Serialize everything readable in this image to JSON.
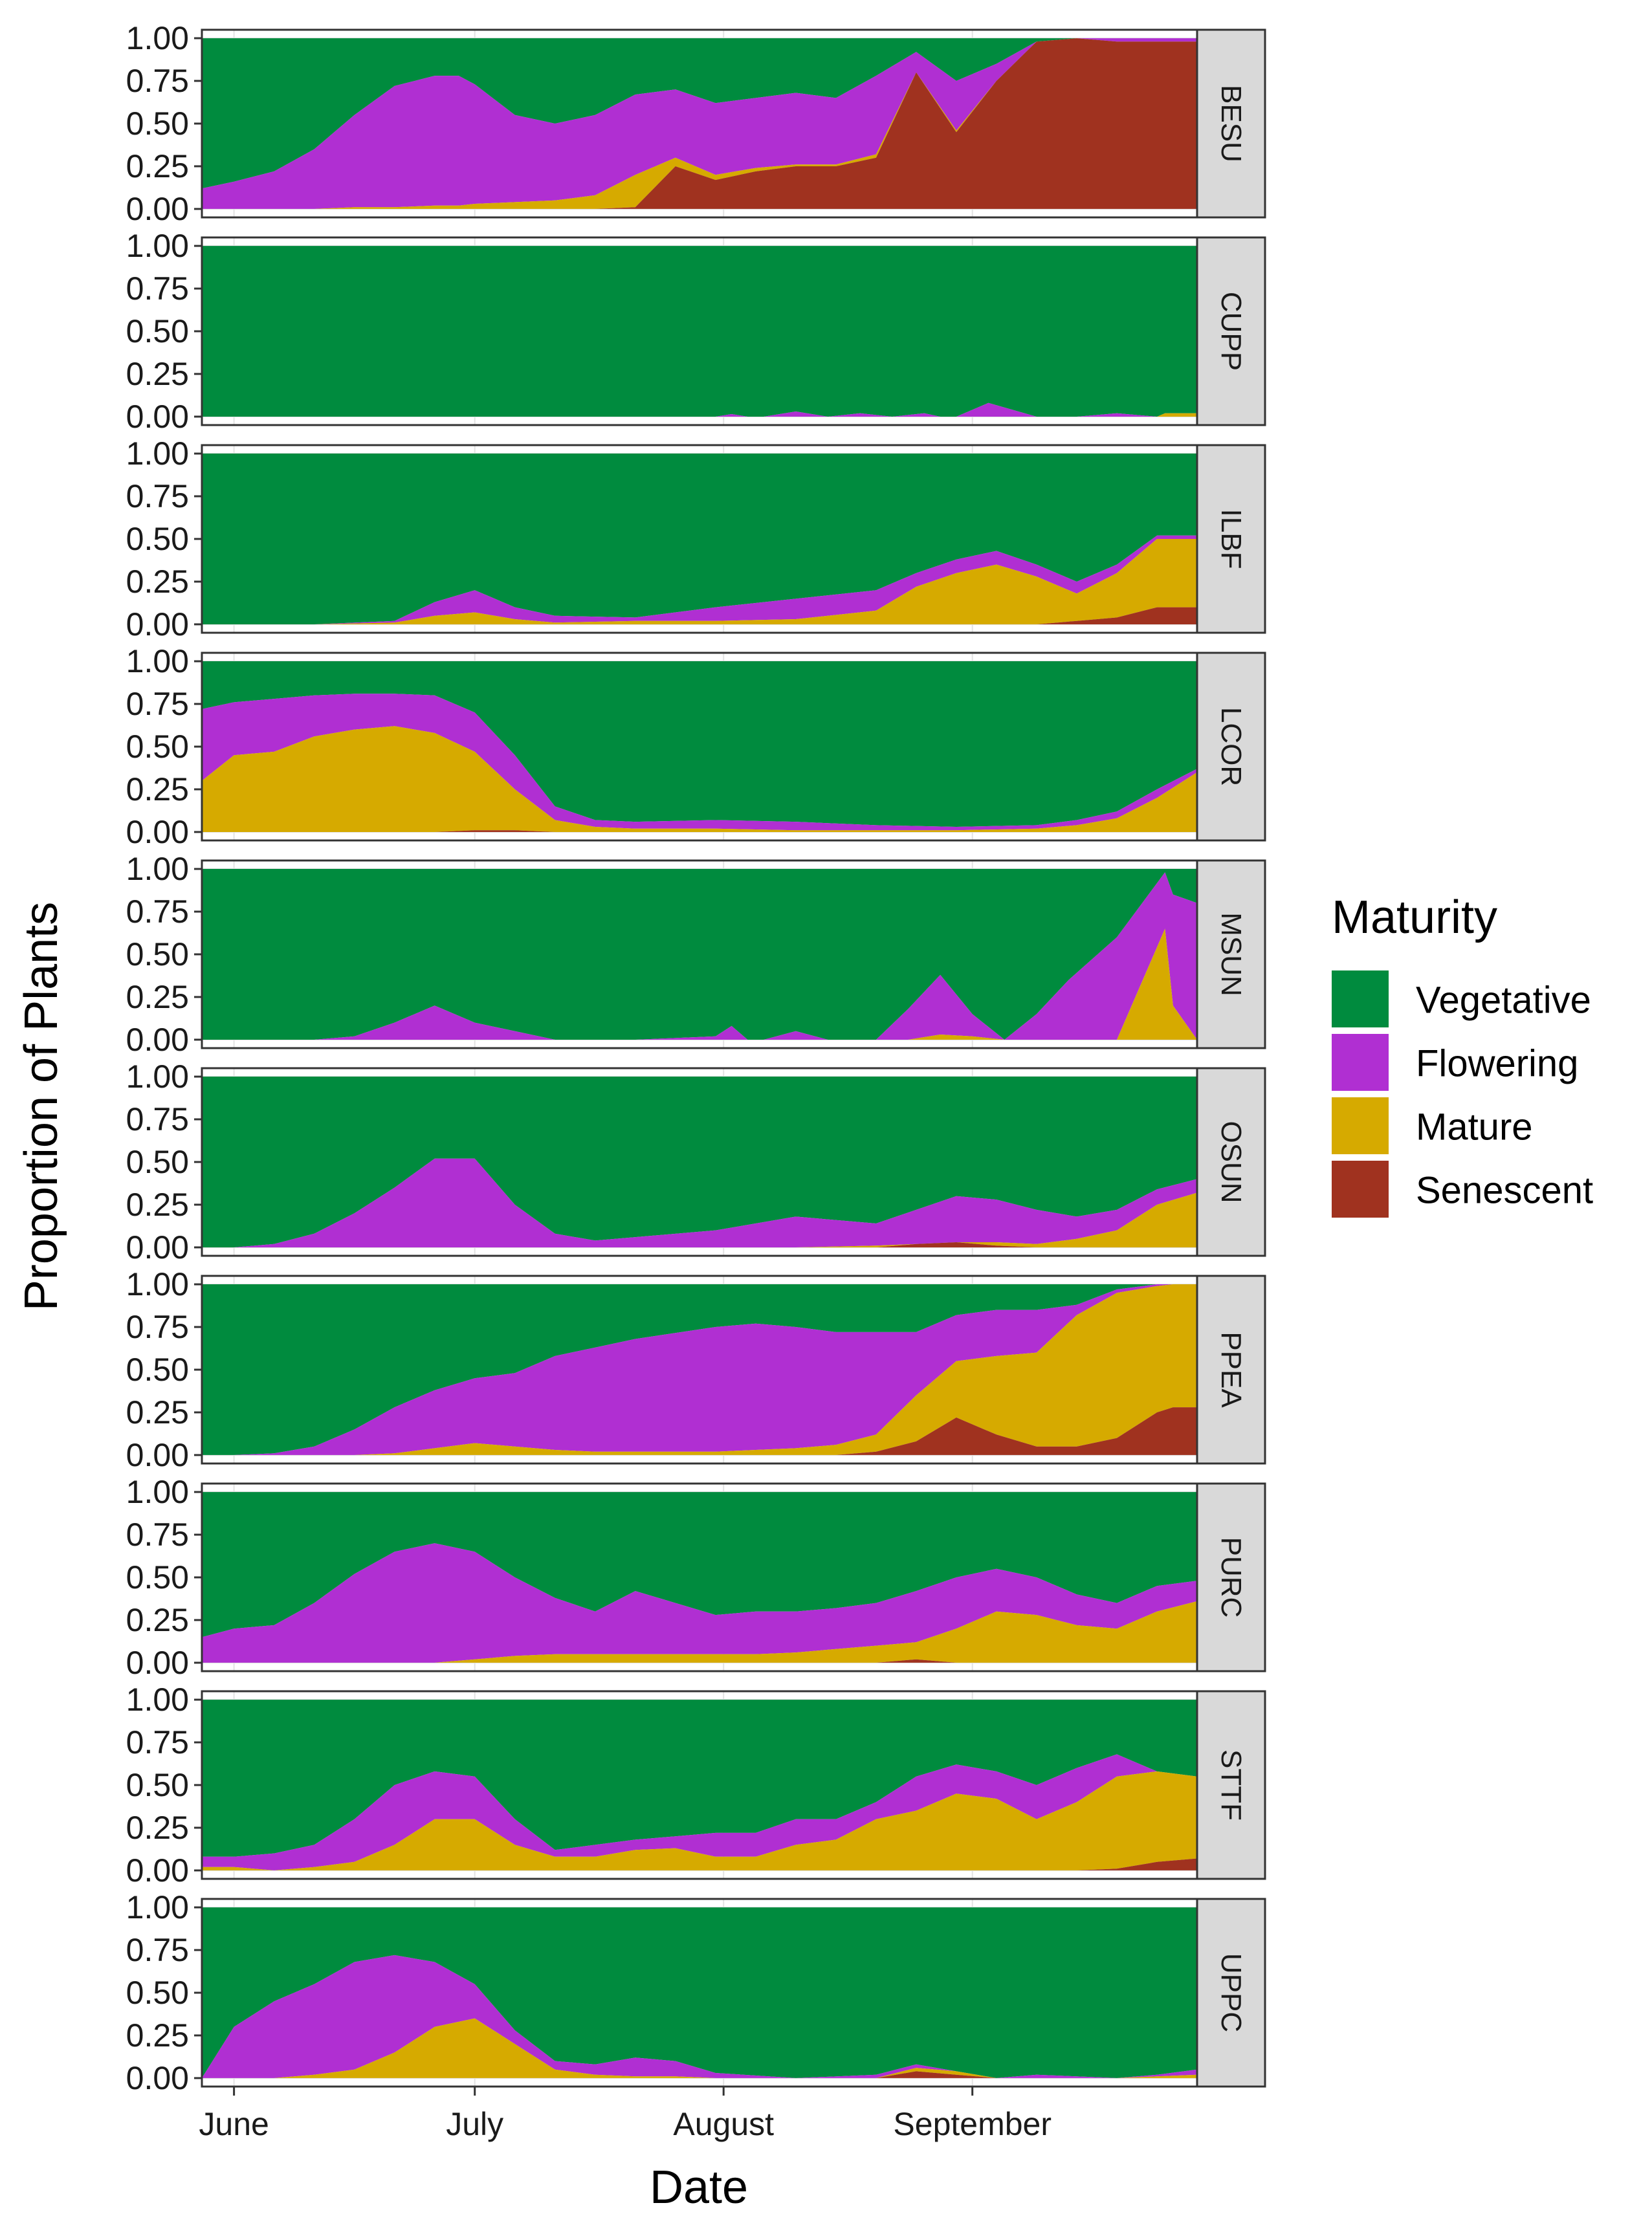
{
  "chart_data": {
    "type": "area",
    "subtype": "stacked-proportion, faceted by site",
    "xlabel": "Date",
    "ylabel": "Proportion of Plants",
    "x_unit": "days since 1 June",
    "xlim": [
      -4,
      120
    ],
    "x_ticks": [
      {
        "value": 0,
        "label": "June"
      },
      {
        "value": 30,
        "label": "July"
      },
      {
        "value": 61,
        "label": "August"
      },
      {
        "value": 92,
        "label": "September"
      }
    ],
    "ylim": [
      0,
      1
    ],
    "y_ticks": [
      {
        "value": 0,
        "label": "0.00"
      },
      {
        "value": 0.25,
        "label": "0.25"
      },
      {
        "value": 0.5,
        "label": "0.50"
      },
      {
        "value": 0.75,
        "label": "0.75"
      },
      {
        "value": 1,
        "label": "1.00"
      }
    ],
    "grid": true,
    "legend": {
      "title": "Maturity",
      "position": "right",
      "entries": [
        {
          "name": "Vegetative",
          "color": "#008B3E"
        },
        {
          "name": "Flowering",
          "color": "#B02FD2"
        },
        {
          "name": "Mature",
          "color": "#D6AA00"
        },
        {
          "name": "Senescent",
          "color": "#A0321F"
        }
      ]
    },
    "stack_order_bottom_to_top": [
      "Senescent",
      "Mature",
      "Flowering",
      "Vegetative"
    ],
    "series_note": "Cumulative stacked boundaries (top of Senescent, top of Mature, top of Flowering); Vegetative fills to 1.0",
    "panels": [
      {
        "name": "BESU",
        "x": [
          -4,
          0,
          5,
          10,
          15,
          20,
          25,
          28,
          30,
          35,
          40,
          45,
          50,
          55,
          60,
          65,
          70,
          75,
          80,
          85,
          90,
          95,
          100,
          105,
          110,
          115,
          116,
          117,
          120
        ],
        "senescent": [
          0,
          0,
          0,
          0,
          0,
          0,
          0,
          0,
          0,
          0,
          0,
          0,
          0.01,
          0.25,
          0.17,
          0.22,
          0.25,
          0.25,
          0.3,
          0.8,
          0.45,
          0.75,
          0.98,
          1.0,
          0.98,
          0.98,
          0.98,
          0.98,
          0.98
        ],
        "mature": [
          0,
          0,
          0,
          0,
          0.01,
          0.01,
          0.02,
          0.02,
          0.03,
          0.04,
          0.05,
          0.08,
          0.2,
          0.3,
          0.2,
          0.24,
          0.26,
          0.26,
          0.32,
          0.8,
          0.46,
          0.75,
          0.98,
          1.0,
          0.98,
          0.98,
          0.98,
          0.98,
          0.98
        ],
        "flowering": [
          0.12,
          0.16,
          0.22,
          0.35,
          0.55,
          0.72,
          0.78,
          0.78,
          0.73,
          0.55,
          0.5,
          0.55,
          0.67,
          0.7,
          0.62,
          0.65,
          0.68,
          0.65,
          0.78,
          0.92,
          0.75,
          0.85,
          0.98,
          1.0,
          1.0,
          1.0,
          1.0,
          1.0,
          1.0
        ]
      },
      {
        "name": "CUPP",
        "x": [
          -4,
          0,
          10,
          20,
          30,
          40,
          50,
          60,
          62,
          64,
          66,
          70,
          74,
          78,
          82,
          86,
          88,
          90,
          94,
          100,
          105,
          110,
          115,
          116,
          117,
          120
        ],
        "senescent": [
          0,
          0,
          0,
          0,
          0,
          0,
          0,
          0,
          0,
          0,
          0,
          0,
          0,
          0,
          0,
          0,
          0,
          0,
          0,
          0,
          0,
          0,
          0,
          0,
          0,
          0
        ],
        "mature": [
          0,
          0,
          0,
          0,
          0,
          0,
          0,
          0,
          0,
          0,
          0,
          0,
          0,
          0,
          0,
          0,
          0,
          0,
          0,
          0,
          0,
          0,
          0,
          0.02,
          0.02,
          0.02
        ],
        "flowering": [
          0,
          0,
          0,
          0,
          0,
          0,
          0,
          0,
          0.015,
          0,
          0,
          0.03,
          0,
          0.02,
          0,
          0.02,
          0,
          0,
          0.08,
          0,
          0,
          0.02,
          0,
          0.02,
          0.02,
          0.02
        ]
      },
      {
        "name": "ILBF",
        "x": [
          -4,
          0,
          10,
          20,
          25,
          30,
          35,
          40,
          50,
          60,
          70,
          80,
          85,
          90,
          95,
          100,
          105,
          110,
          115,
          120
        ],
        "senescent": [
          0,
          0,
          0,
          0,
          0,
          0,
          0,
          0,
          0,
          0,
          0,
          0,
          0,
          0,
          0,
          0,
          0.02,
          0.04,
          0.1,
          0.1
        ],
        "mature": [
          0,
          0,
          0,
          0.01,
          0.05,
          0.07,
          0.03,
          0.01,
          0.02,
          0.02,
          0.03,
          0.08,
          0.22,
          0.3,
          0.35,
          0.28,
          0.18,
          0.3,
          0.5,
          0.5
        ],
        "flowering": [
          0,
          0,
          0,
          0.02,
          0.13,
          0.2,
          0.1,
          0.05,
          0.04,
          0.1,
          0.15,
          0.2,
          0.3,
          0.38,
          0.43,
          0.35,
          0.25,
          0.35,
          0.52,
          0.52
        ]
      },
      {
        "name": "LCOR",
        "x": [
          -4,
          0,
          5,
          10,
          15,
          20,
          25,
          30,
          35,
          40,
          45,
          50,
          60,
          70,
          80,
          90,
          100,
          105,
          110,
          115,
          120
        ],
        "senescent": [
          0,
          0,
          0,
          0,
          0,
          0,
          0,
          0.01,
          0.01,
          0,
          0,
          0,
          0,
          0,
          0,
          0,
          0,
          0,
          0,
          0,
          0
        ],
        "mature": [
          0.3,
          0.45,
          0.47,
          0.56,
          0.6,
          0.62,
          0.58,
          0.47,
          0.25,
          0.07,
          0.03,
          0.02,
          0.02,
          0.01,
          0.01,
          0.01,
          0.02,
          0.04,
          0.08,
          0.2,
          0.35
        ],
        "flowering": [
          0.72,
          0.76,
          0.78,
          0.8,
          0.81,
          0.81,
          0.8,
          0.7,
          0.45,
          0.15,
          0.07,
          0.06,
          0.07,
          0.06,
          0.04,
          0.03,
          0.04,
          0.07,
          0.12,
          0.25,
          0.37
        ]
      },
      {
        "name": "MSUN",
        "x": [
          -4,
          0,
          10,
          15,
          20,
          25,
          30,
          35,
          40,
          50,
          60,
          62,
          64,
          66,
          70,
          74,
          80,
          84,
          88,
          92,
          96,
          100,
          104,
          110,
          116,
          117,
          120
        ],
        "senescent": [
          0,
          0,
          0,
          0,
          0,
          0,
          0,
          0,
          0,
          0,
          0,
          0,
          0,
          0,
          0,
          0,
          0,
          0,
          0,
          0,
          0,
          0,
          0,
          0,
          0,
          0,
          0
        ],
        "mature": [
          0,
          0,
          0,
          0,
          0,
          0,
          0,
          0,
          0,
          0,
          0,
          0,
          0,
          0,
          0,
          0,
          0,
          0,
          0.03,
          0.02,
          0,
          0,
          0,
          0,
          0.65,
          0.2,
          0
        ],
        "flowering": [
          0,
          0,
          0,
          0.02,
          0.1,
          0.2,
          0.1,
          0.05,
          0,
          0,
          0.02,
          0.08,
          0,
          0,
          0.05,
          0,
          0,
          0.18,
          0.38,
          0.15,
          0,
          0.15,
          0.35,
          0.6,
          0.98,
          0.85,
          0.8
        ]
      },
      {
        "name": "OSUN",
        "x": [
          -4,
          0,
          5,
          10,
          15,
          20,
          25,
          30,
          35,
          40,
          45,
          50,
          60,
          70,
          80,
          85,
          90,
          95,
          100,
          105,
          110,
          115,
          120
        ],
        "senescent": [
          0,
          0,
          0,
          0,
          0,
          0,
          0,
          0,
          0,
          0,
          0,
          0,
          0,
          0,
          0,
          0.02,
          0.03,
          0.01,
          0,
          0,
          0,
          0,
          0
        ],
        "mature": [
          0,
          0,
          0,
          0,
          0,
          0,
          0,
          0,
          0,
          0,
          0,
          0,
          0,
          0,
          0.01,
          0.02,
          0.03,
          0.03,
          0.02,
          0.05,
          0.1,
          0.25,
          0.32
        ],
        "flowering": [
          0,
          0,
          0.02,
          0.08,
          0.2,
          0.35,
          0.52,
          0.52,
          0.25,
          0.08,
          0.04,
          0.06,
          0.1,
          0.18,
          0.14,
          0.22,
          0.3,
          0.28,
          0.22,
          0.18,
          0.22,
          0.34,
          0.4
        ]
      },
      {
        "name": "PPEA",
        "x": [
          -4,
          0,
          5,
          10,
          15,
          20,
          25,
          30,
          35,
          40,
          45,
          50,
          60,
          65,
          70,
          75,
          80,
          85,
          90,
          95,
          100,
          105,
          110,
          115,
          117,
          120
        ],
        "senescent": [
          0,
          0,
          0,
          0,
          0,
          0,
          0,
          0,
          0,
          0,
          0,
          0,
          0,
          0,
          0,
          0,
          0.02,
          0.08,
          0.22,
          0.12,
          0.05,
          0.05,
          0.1,
          0.25,
          0.28,
          0.28
        ],
        "mature": [
          0,
          0,
          0,
          0,
          0,
          0.01,
          0.04,
          0.07,
          0.05,
          0.03,
          0.02,
          0.02,
          0.02,
          0.03,
          0.04,
          0.06,
          0.12,
          0.35,
          0.55,
          0.58,
          0.6,
          0.82,
          0.95,
          0.99,
          1.0,
          1.0
        ],
        "flowering": [
          0,
          0,
          0.01,
          0.05,
          0.15,
          0.28,
          0.38,
          0.45,
          0.48,
          0.58,
          0.63,
          0.68,
          0.75,
          0.77,
          0.75,
          0.72,
          0.72,
          0.72,
          0.82,
          0.85,
          0.85,
          0.88,
          0.97,
          1.0,
          1.0,
          1.0
        ]
      },
      {
        "name": "PURC",
        "x": [
          -4,
          0,
          5,
          10,
          15,
          20,
          25,
          30,
          35,
          40,
          45,
          50,
          55,
          60,
          65,
          70,
          75,
          80,
          85,
          90,
          95,
          100,
          105,
          110,
          115,
          120
        ],
        "senescent": [
          0,
          0,
          0,
          0,
          0,
          0,
          0,
          0,
          0,
          0,
          0,
          0,
          0,
          0,
          0,
          0,
          0,
          0,
          0.02,
          0,
          0,
          0,
          0,
          0,
          0,
          0
        ],
        "mature": [
          0,
          0,
          0,
          0,
          0,
          0,
          0,
          0.02,
          0.04,
          0.05,
          0.05,
          0.05,
          0.05,
          0.05,
          0.05,
          0.06,
          0.08,
          0.1,
          0.12,
          0.2,
          0.3,
          0.28,
          0.22,
          0.2,
          0.3,
          0.36
        ],
        "flowering": [
          0.15,
          0.2,
          0.22,
          0.35,
          0.52,
          0.65,
          0.7,
          0.65,
          0.5,
          0.38,
          0.3,
          0.42,
          0.35,
          0.28,
          0.3,
          0.3,
          0.32,
          0.35,
          0.42,
          0.5,
          0.55,
          0.5,
          0.4,
          0.35,
          0.45,
          0.48
        ]
      },
      {
        "name": "STTF",
        "x": [
          -4,
          0,
          5,
          10,
          15,
          20,
          25,
          30,
          35,
          40,
          45,
          50,
          55,
          60,
          65,
          70,
          75,
          80,
          85,
          90,
          95,
          100,
          105,
          110,
          115,
          120
        ],
        "senescent": [
          0,
          0,
          0,
          0,
          0,
          0,
          0,
          0,
          0,
          0,
          0,
          0,
          0,
          0,
          0,
          0,
          0,
          0,
          0,
          0,
          0,
          0,
          0,
          0.01,
          0.05,
          0.07
        ],
        "mature": [
          0.02,
          0.02,
          0,
          0.02,
          0.05,
          0.15,
          0.3,
          0.3,
          0.15,
          0.08,
          0.08,
          0.12,
          0.13,
          0.08,
          0.08,
          0.15,
          0.18,
          0.3,
          0.35,
          0.45,
          0.42,
          0.3,
          0.4,
          0.55,
          0.58,
          0.55
        ],
        "flowering": [
          0.08,
          0.08,
          0.1,
          0.15,
          0.3,
          0.5,
          0.58,
          0.55,
          0.3,
          0.12,
          0.15,
          0.18,
          0.2,
          0.22,
          0.22,
          0.3,
          0.3,
          0.4,
          0.55,
          0.62,
          0.58,
          0.5,
          0.6,
          0.68,
          0.58,
          0.55
        ]
      },
      {
        "name": "UPPC",
        "x": [
          -4,
          0,
          5,
          10,
          15,
          20,
          25,
          30,
          35,
          40,
          45,
          50,
          55,
          60,
          70,
          80,
          85,
          90,
          95,
          100,
          110,
          115,
          120
        ],
        "senescent": [
          0,
          0,
          0,
          0,
          0,
          0,
          0,
          0,
          0,
          0,
          0,
          0,
          0,
          0,
          0,
          0,
          0.04,
          0.02,
          0,
          0,
          0,
          0,
          0
        ],
        "mature": [
          0,
          0,
          0,
          0.02,
          0.05,
          0.15,
          0.3,
          0.35,
          0.2,
          0.05,
          0.02,
          0.01,
          0.01,
          0,
          0,
          0,
          0.06,
          0.04,
          0,
          0,
          0,
          0.01,
          0.02
        ],
        "flowering": [
          0,
          0.3,
          0.45,
          0.55,
          0.68,
          0.72,
          0.68,
          0.55,
          0.28,
          0.1,
          0.08,
          0.12,
          0.1,
          0.03,
          0,
          0.02,
          0.08,
          0.04,
          0,
          0.02,
          0,
          0.02,
          0.05
        ]
      }
    ]
  }
}
